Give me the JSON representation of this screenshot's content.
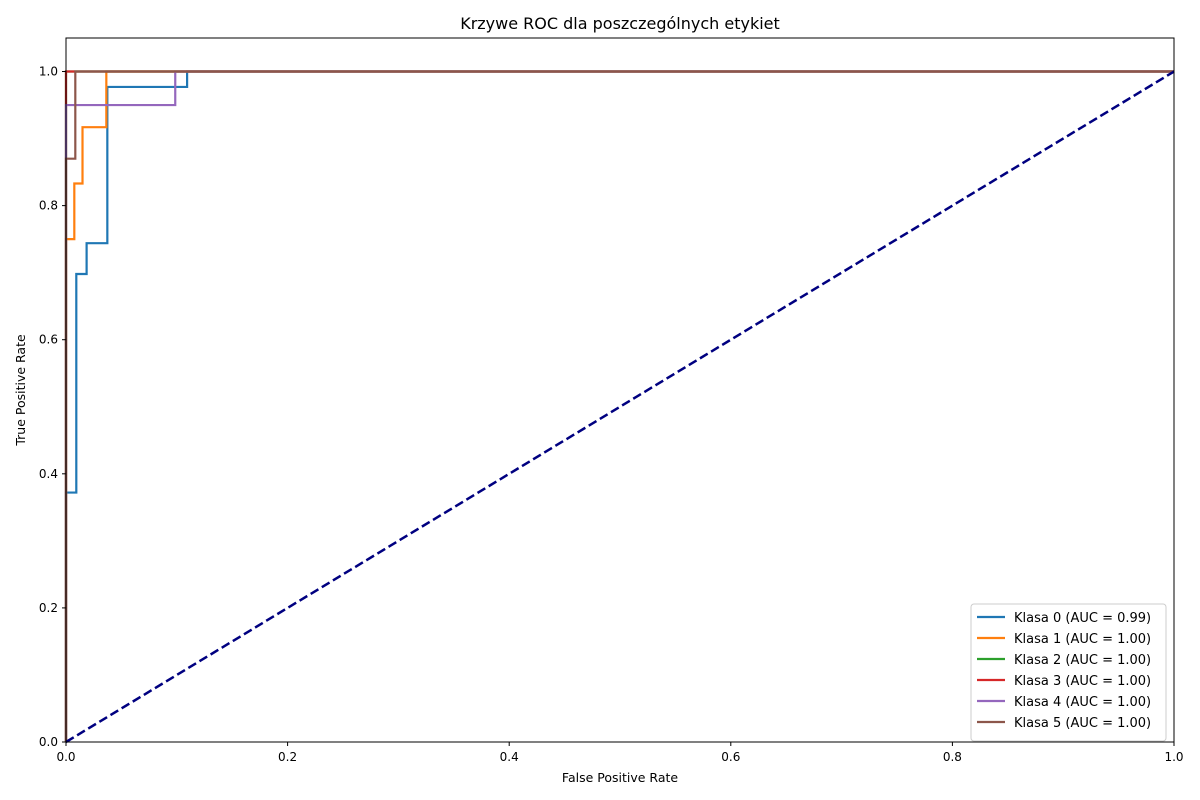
{
  "chart_data": {
    "type": "line",
    "title": "Krzywe ROC dla poszczególnych etykiet",
    "xlabel": "False Positive Rate",
    "ylabel": "True Positive Rate",
    "xlim": [
      0.0,
      1.0
    ],
    "ylim": [
      0.0,
      1.05
    ],
    "xticks": [
      "0.0",
      "0.2",
      "0.4",
      "0.6",
      "0.8",
      "1.0"
    ],
    "yticks": [
      "0.0",
      "0.2",
      "0.4",
      "0.6",
      "0.8",
      "1.0"
    ],
    "grid": false,
    "legend_position": "bottom-right",
    "series": [
      {
        "name": "Klasa 0 (AUC = 0.99)",
        "color": "#1f77b4",
        "x": [
          0.0,
          0.0,
          0.0093,
          0.0093,
          0.0186,
          0.0186,
          0.0373,
          0.0373,
          0.1093,
          0.1093,
          1.0
        ],
        "y": [
          0.0,
          0.372,
          0.372,
          0.698,
          0.698,
          0.744,
          0.744,
          0.977,
          0.977,
          1.0,
          1.0
        ]
      },
      {
        "name": "Klasa 1 (AUC = 1.00)",
        "color": "#ff7f0e",
        "x": [
          0.0,
          0.0,
          0.0075,
          0.0075,
          0.0149,
          0.0149,
          0.0364,
          0.0364,
          1.0
        ],
        "y": [
          0.0,
          0.75,
          0.75,
          0.833,
          0.833,
          0.917,
          0.917,
          1.0,
          1.0
        ]
      },
      {
        "name": "Klasa 2 (AUC = 1.00)",
        "color": "#2ca02c",
        "x": [
          0.0,
          0.0,
          1.0
        ],
        "y": [
          0.0,
          1.0,
          1.0
        ]
      },
      {
        "name": "Klasa 3 (AUC = 1.00)",
        "color": "#d62728",
        "x": [
          0.0,
          0.0,
          1.0
        ],
        "y": [
          0.0,
          1.0,
          1.0
        ]
      },
      {
        "name": "Klasa 4 (AUC = 1.00)",
        "color": "#9467bd",
        "x": [
          0.0,
          0.0,
          0.0986,
          0.0986,
          1.0
        ],
        "y": [
          0.0,
          0.95,
          0.95,
          1.0,
          1.0
        ]
      },
      {
        "name": "Klasa 5 (AUC = 1.00)",
        "color": "#8c564b",
        "x": [
          0.0,
          0.0,
          0.0084,
          0.0084,
          1.0
        ],
        "y": [
          0.0,
          0.87,
          0.87,
          1.0,
          1.0
        ]
      }
    ],
    "reference_line": {
      "color": "#000080",
      "style": "dashed",
      "x": [
        0.0,
        1.0
      ],
      "y": [
        0.0,
        1.0
      ]
    }
  }
}
